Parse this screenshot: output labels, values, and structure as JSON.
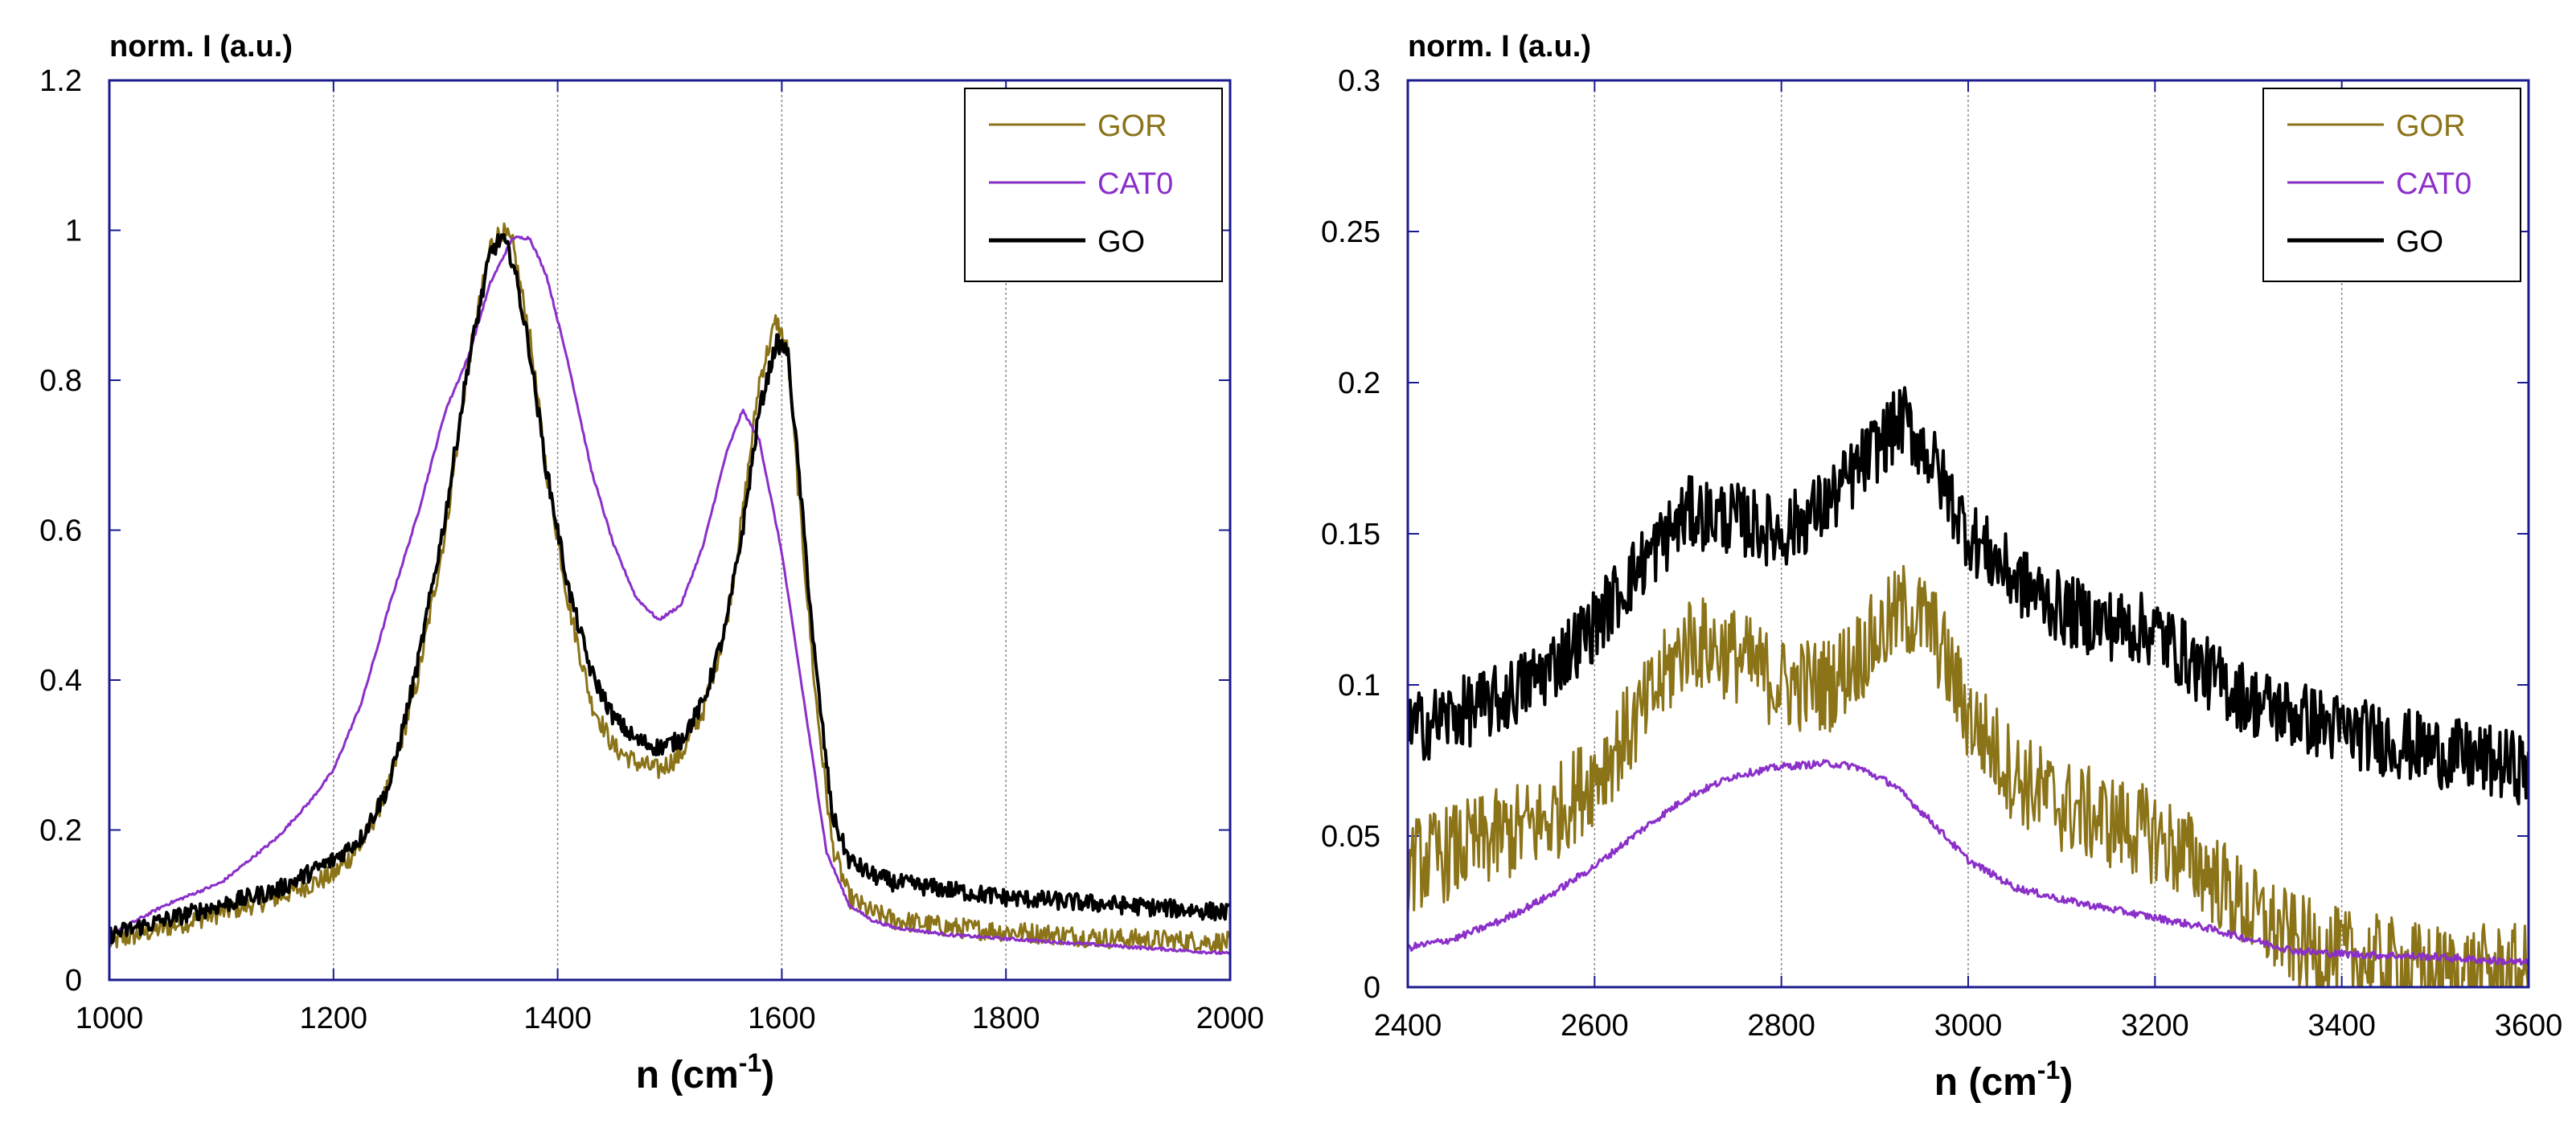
{
  "chart_data": [
    {
      "type": "line",
      "ylabel": "norm. I (a.u.)",
      "xlabel_main": "n (cm",
      "xlabel_sup": "-1",
      "xlabel_close": ")",
      "xlim": [
        1000,
        2000
      ],
      "ylim": [
        0,
        1.2
      ],
      "xticks": [
        1000,
        1200,
        1400,
        1600,
        1800,
        2000
      ],
      "xtick_labels": [
        "1000",
        "1200",
        "1400",
        "1600",
        "1800",
        "2000"
      ],
      "yticks": [
        0,
        0.2,
        0.4,
        0.6,
        0.8,
        1,
        1.2
      ],
      "ytick_labels": [
        "0",
        "0.2",
        "0.4",
        "0.6",
        "0.8",
        "1",
        "1.2"
      ],
      "vgrid": [
        1200,
        1400,
        1600,
        1800
      ],
      "legend_position": "top-right",
      "series": [
        {
          "name": "GOR",
          "color": "#8b7318",
          "noise": 0.014,
          "points": [
            [
              1000,
              0.05
            ],
            [
              1050,
              0.07
            ],
            [
              1100,
              0.09
            ],
            [
              1150,
              0.11
            ],
            [
              1200,
              0.14
            ],
            [
              1225,
              0.18
            ],
            [
              1250,
              0.26
            ],
            [
              1275,
              0.4
            ],
            [
              1300,
              0.6
            ],
            [
              1320,
              0.82
            ],
            [
              1340,
              0.98
            ],
            [
              1350,
              1.0
            ],
            [
              1360,
              0.98
            ],
            [
              1375,
              0.86
            ],
            [
              1390,
              0.68
            ],
            [
              1410,
              0.5
            ],
            [
              1430,
              0.37
            ],
            [
              1450,
              0.31
            ],
            [
              1470,
              0.29
            ],
            [
              1490,
              0.28
            ],
            [
              1510,
              0.3
            ],
            [
              1530,
              0.36
            ],
            [
              1550,
              0.47
            ],
            [
              1565,
              0.62
            ],
            [
              1580,
              0.8
            ],
            [
              1595,
              0.88
            ],
            [
              1605,
              0.84
            ],
            [
              1615,
              0.65
            ],
            [
              1630,
              0.38
            ],
            [
              1645,
              0.18
            ],
            [
              1660,
              0.11
            ],
            [
              1680,
              0.09
            ],
            [
              1700,
              0.08
            ],
            [
              1750,
              0.07
            ],
            [
              1800,
              0.065
            ],
            [
              1900,
              0.055
            ],
            [
              2000,
              0.05
            ]
          ]
        },
        {
          "name": "CAT0",
          "color": "#8b2fc9",
          "noise": 0.002,
          "points": [
            [
              1000,
              0.06
            ],
            [
              1050,
              0.1
            ],
            [
              1100,
              0.13
            ],
            [
              1150,
              0.19
            ],
            [
              1180,
              0.24
            ],
            [
              1200,
              0.28
            ],
            [
              1225,
              0.37
            ],
            [
              1250,
              0.5
            ],
            [
              1275,
              0.62
            ],
            [
              1300,
              0.76
            ],
            [
              1320,
              0.83
            ],
            [
              1340,
              0.93
            ],
            [
              1360,
              0.99
            ],
            [
              1375,
              0.99
            ],
            [
              1390,
              0.94
            ],
            [
              1410,
              0.82
            ],
            [
              1430,
              0.68
            ],
            [
              1450,
              0.58
            ],
            [
              1470,
              0.51
            ],
            [
              1490,
              0.48
            ],
            [
              1510,
              0.5
            ],
            [
              1530,
              0.58
            ],
            [
              1550,
              0.7
            ],
            [
              1565,
              0.76
            ],
            [
              1580,
              0.72
            ],
            [
              1600,
              0.57
            ],
            [
              1620,
              0.37
            ],
            [
              1640,
              0.17
            ],
            [
              1660,
              0.1
            ],
            [
              1680,
              0.08
            ],
            [
              1700,
              0.07
            ],
            [
              1750,
              0.06
            ],
            [
              1800,
              0.055
            ],
            [
              1900,
              0.045
            ],
            [
              2000,
              0.035
            ]
          ]
        },
        {
          "name": "GO",
          "color": "#000000",
          "noise": 0.012,
          "points": [
            [
              1000,
              0.06
            ],
            [
              1050,
              0.08
            ],
            [
              1100,
              0.1
            ],
            [
              1150,
              0.12
            ],
            [
              1200,
              0.16
            ],
            [
              1225,
              0.19
            ],
            [
              1250,
              0.26
            ],
            [
              1275,
              0.42
            ],
            [
              1300,
              0.62
            ],
            [
              1320,
              0.82
            ],
            [
              1340,
              0.97
            ],
            [
              1350,
              0.99
            ],
            [
              1360,
              0.96
            ],
            [
              1375,
              0.84
            ],
            [
              1390,
              0.68
            ],
            [
              1410,
              0.52
            ],
            [
              1430,
              0.41
            ],
            [
              1450,
              0.35
            ],
            [
              1470,
              0.32
            ],
            [
              1490,
              0.31
            ],
            [
              1510,
              0.32
            ],
            [
              1530,
              0.37
            ],
            [
              1550,
              0.47
            ],
            [
              1565,
              0.6
            ],
            [
              1580,
              0.76
            ],
            [
              1595,
              0.85
            ],
            [
              1605,
              0.84
            ],
            [
              1615,
              0.68
            ],
            [
              1630,
              0.42
            ],
            [
              1645,
              0.22
            ],
            [
              1660,
              0.16
            ],
            [
              1680,
              0.14
            ],
            [
              1700,
              0.13
            ],
            [
              1800,
              0.11
            ],
            [
              1900,
              0.1
            ],
            [
              2000,
              0.09
            ]
          ]
        }
      ]
    },
    {
      "type": "line",
      "ylabel": "norm. I (a.u.)",
      "xlabel_main": "n (cm",
      "xlabel_sup": "-1",
      "xlabel_close": ")",
      "xlim": [
        2400,
        3600
      ],
      "ylim": [
        0,
        0.3
      ],
      "xticks": [
        2400,
        2600,
        2800,
        3000,
        3200,
        3400,
        3600
      ],
      "xtick_labels": [
        "2400",
        "2600",
        "2800",
        "3000",
        "3200",
        "3400",
        "3600"
      ],
      "yticks": [
        0,
        0.05,
        0.1,
        0.15,
        0.2,
        0.25,
        0.3
      ],
      "ytick_labels": [
        "0",
        "0.05",
        "0.1",
        "0.15",
        "0.2",
        "0.25",
        "0.3"
      ],
      "vgrid": [
        2600,
        2800,
        3000,
        3200,
        3400
      ],
      "legend_position": "top-right",
      "series": [
        {
          "name": "GOR",
          "color": "#8b7318",
          "noise": 0.016,
          "points": [
            [
              2400,
              0.04
            ],
            [
              2450,
              0.045
            ],
            [
              2500,
              0.05
            ],
            [
              2550,
              0.055
            ],
            [
              2600,
              0.07
            ],
            [
              2650,
              0.09
            ],
            [
              2700,
              0.115
            ],
            [
              2750,
              0.11
            ],
            [
              2800,
              0.1
            ],
            [
              2850,
              0.1
            ],
            [
              2900,
              0.115
            ],
            [
              2930,
              0.125
            ],
            [
              2960,
              0.12
            ],
            [
              3000,
              0.09
            ],
            [
              3050,
              0.07
            ],
            [
              3100,
              0.06
            ],
            [
              3150,
              0.055
            ],
            [
              3200,
              0.05
            ],
            [
              3250,
              0.04
            ],
            [
              3300,
              0.025
            ],
            [
              3350,
              0.015
            ],
            [
              3400,
              0.01
            ],
            [
              3500,
              0.005
            ],
            [
              3600,
              0.005
            ]
          ]
        },
        {
          "name": "CAT0",
          "color": "#8b2fc9",
          "noise": 0.0012,
          "points": [
            [
              2400,
              0.013
            ],
            [
              2450,
              0.016
            ],
            [
              2500,
              0.022
            ],
            [
              2550,
              0.03
            ],
            [
              2600,
              0.04
            ],
            [
              2650,
              0.052
            ],
            [
              2700,
              0.063
            ],
            [
              2750,
              0.07
            ],
            [
              2800,
              0.073
            ],
            [
              2850,
              0.074
            ],
            [
              2880,
              0.073
            ],
            [
              2920,
              0.067
            ],
            [
              2960,
              0.055
            ],
            [
              3000,
              0.042
            ],
            [
              3050,
              0.033
            ],
            [
              3100,
              0.029
            ],
            [
              3150,
              0.026
            ],
            [
              3200,
              0.023
            ],
            [
              3250,
              0.02
            ],
            [
              3300,
              0.016
            ],
            [
              3350,
              0.012
            ],
            [
              3400,
              0.011
            ],
            [
              3500,
              0.01
            ],
            [
              3600,
              0.008
            ]
          ]
        },
        {
          "name": "GO",
          "color": "#000000",
          "noise": 0.012,
          "points": [
            [
              2400,
              0.085
            ],
            [
              2450,
              0.09
            ],
            [
              2500,
              0.095
            ],
            [
              2550,
              0.105
            ],
            [
              2600,
              0.12
            ],
            [
              2650,
              0.14
            ],
            [
              2700,
              0.157
            ],
            [
              2750,
              0.155
            ],
            [
              2800,
              0.15
            ],
            [
              2850,
              0.16
            ],
            [
              2900,
              0.178
            ],
            [
              2930,
              0.188
            ],
            [
              2960,
              0.175
            ],
            [
              3000,
              0.15
            ],
            [
              3050,
              0.135
            ],
            [
              3100,
              0.125
            ],
            [
              3150,
              0.12
            ],
            [
              3200,
              0.118
            ],
            [
              3250,
              0.105
            ],
            [
              3300,
              0.095
            ],
            [
              3400,
              0.085
            ],
            [
              3500,
              0.078
            ],
            [
              3600,
              0.072
            ]
          ]
        }
      ]
    }
  ]
}
